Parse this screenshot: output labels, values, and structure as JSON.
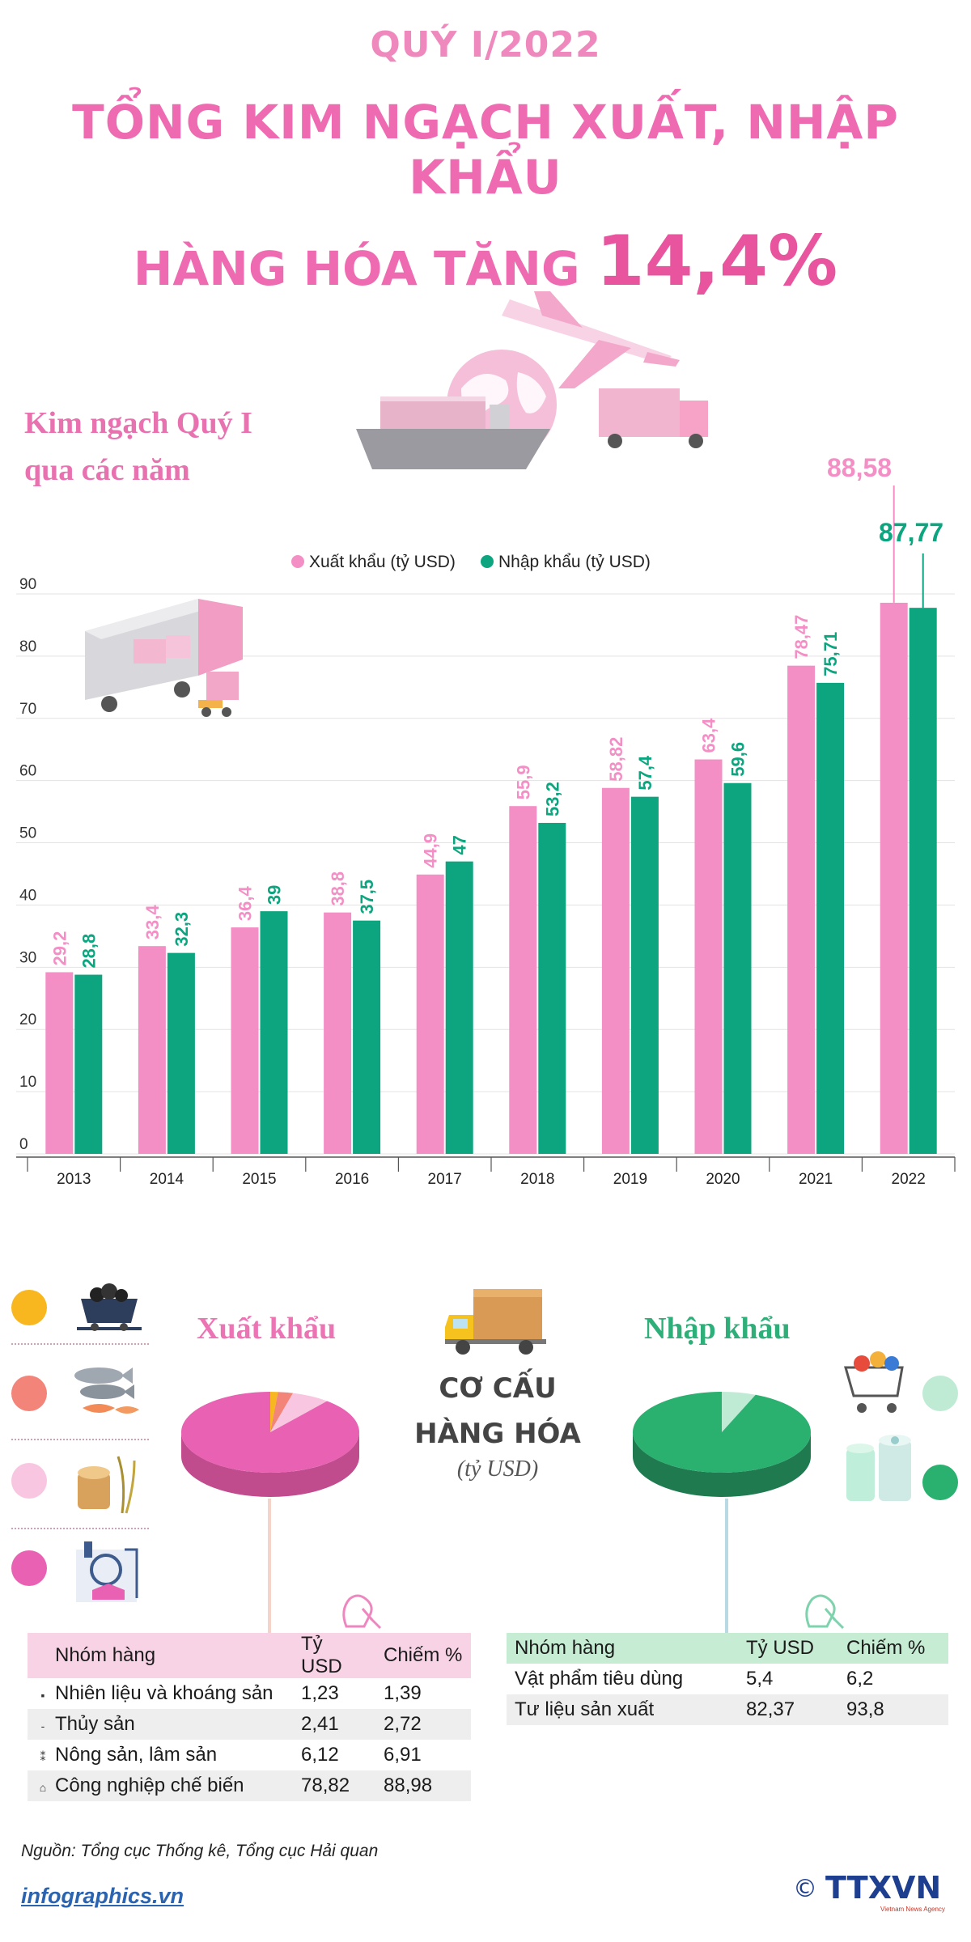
{
  "header": {
    "line1": "QUÝ I/2022",
    "line2": "TỔNG KIM NGẠCH XUẤT, NHẬP KHẨU",
    "line3": "HÀNG HÓA TĂNG",
    "highlight": "14,4%"
  },
  "chart_heading": {
    "line1": "Kim ngạch Quý I",
    "line2": "qua các năm"
  },
  "chart_data": {
    "type": "bar",
    "title": "",
    "xlabel": "",
    "ylabel": "",
    "ylim": [
      0,
      90
    ],
    "yticks": [
      0,
      10,
      20,
      30,
      40,
      50,
      60,
      70,
      80,
      90
    ],
    "grid": true,
    "legend_position": "top",
    "categories": [
      "2013",
      "2014",
      "2015",
      "2016",
      "2017",
      "2018",
      "2019",
      "2020",
      "2021",
      "2022"
    ],
    "series": [
      {
        "name": "Xuất khẩu (tỷ USD)",
        "color": "#f48fc6",
        "values": [
          29.2,
          33.4,
          36.4,
          38.8,
          44.9,
          55.9,
          58.82,
          63.4,
          78.47,
          88.58
        ],
        "labels": [
          "29,2",
          "33,4",
          "36,4",
          "38,8",
          "44,9",
          "55,9",
          "58,82",
          "63,4",
          "78,47",
          "88,58"
        ]
      },
      {
        "name": "Nhập khẩu (tỷ USD)",
        "color": "#0ca57f",
        "values": [
          28.8,
          32.3,
          39,
          37.5,
          47,
          53.2,
          57.4,
          59.6,
          75.71,
          87.77
        ],
        "labels": [
          "28,8",
          "32,3",
          "39",
          "37,5",
          "47",
          "53,2",
          "57,4",
          "59,6",
          "75,71",
          "87,77"
        ]
      }
    ]
  },
  "structure": {
    "title_line1": "CƠ CẤU",
    "title_line2": "HÀNG HÓA",
    "unit": "(tỷ USD)",
    "export": {
      "title": "Xuất khẩu",
      "header": [
        "Nhóm hàng",
        "Tỷ USD",
        "Chiếm %"
      ],
      "rows": [
        {
          "icon": "coal-cart-icon",
          "name": "Nhiên liệu và khoáng sản",
          "value": "1,23",
          "share": "1,39",
          "color": "#f9b71f"
        },
        {
          "icon": "fish-icon",
          "name": "Thủy sản",
          "value": "2,41",
          "share": "2,72",
          "color": "#f2847a"
        },
        {
          "icon": "wood-rice-icon",
          "name": "Nông sản, lâm sản",
          "value": "6,12",
          "share": "6,91",
          "color": "#f8c6e0"
        },
        {
          "icon": "factory-icon",
          "name": "Công nghiệp chế biến",
          "value": "78,82",
          "share": "88,98",
          "color": "#e861b2"
        }
      ],
      "pie_shares": [
        1.39,
        2.72,
        6.91,
        88.98
      ]
    },
    "import": {
      "title": "Nhập khẩu",
      "header": [
        "Nhóm hàng",
        "Tỷ USD",
        "Chiếm %"
      ],
      "rows": [
        {
          "icon": "shopping-cart-icon",
          "name": "Vật phẩm tiêu dùng",
          "value": "5,4",
          "share": "6,2",
          "color": "#bfebd5"
        },
        {
          "icon": "fabric-roll-icon",
          "name": "Tư liệu sản xuất",
          "value": "82,37",
          "share": "93,8",
          "color": "#2ab06f"
        }
      ],
      "pie_shares": [
        6.2,
        93.8
      ]
    }
  },
  "footer": {
    "source": "Nguồn: Tổng cục Thống kê, Tổng cục Hải quan",
    "site": "infographics.vn",
    "logo_text": "TTXVN",
    "logo_sub": "Vietnam News Agency",
    "copyright": "©"
  }
}
